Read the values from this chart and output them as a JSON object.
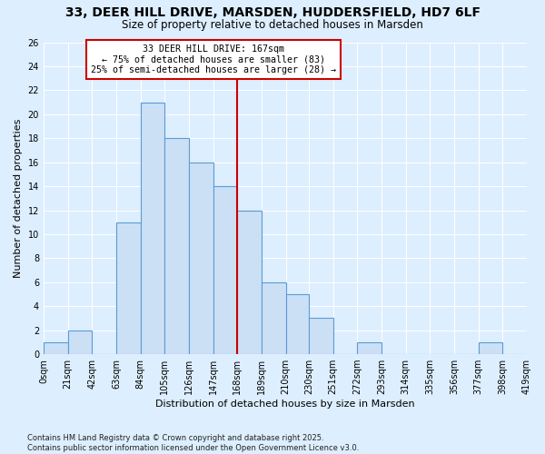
{
  "title": "33, DEER HILL DRIVE, MARSDEN, HUDDERSFIELD, HD7 6LF",
  "subtitle": "Size of property relative to detached houses in Marsden",
  "xlabel": "Distribution of detached houses by size in Marsden",
  "ylabel": "Number of detached properties",
  "bin_edges": [
    0,
    21,
    42,
    63,
    84,
    105,
    126,
    147,
    168,
    189,
    210,
    230,
    251,
    272,
    293,
    314,
    335,
    356,
    377,
    398,
    419
  ],
  "bin_labels": [
    "0sqm",
    "21sqm",
    "42sqm",
    "63sqm",
    "84sqm",
    "105sqm",
    "126sqm",
    "147sqm",
    "168sqm",
    "189sqm",
    "210sqm",
    "230sqm",
    "251sqm",
    "272sqm",
    "293sqm",
    "314sqm",
    "335sqm",
    "356sqm",
    "377sqm",
    "398sqm",
    "419sqm"
  ],
  "counts": [
    1,
    2,
    0,
    11,
    21,
    18,
    16,
    14,
    12,
    6,
    5,
    3,
    0,
    1,
    0,
    0,
    0,
    0,
    1,
    0
  ],
  "bar_color": "#cce0f5",
  "bar_edge_color": "#5b9bd5",
  "vline_x": 168,
  "vline_color": "#cc0000",
  "annotation_title": "33 DEER HILL DRIVE: 167sqm",
  "annotation_line1": "← 75% of detached houses are smaller (83)",
  "annotation_line2": "25% of semi-detached houses are larger (28) →",
  "annotation_box_color": "#ffffff",
  "annotation_box_edge": "#cc0000",
  "ylim": [
    0,
    26
  ],
  "yticks": [
    0,
    2,
    4,
    6,
    8,
    10,
    12,
    14,
    16,
    18,
    20,
    22,
    24,
    26
  ],
  "bg_color": "#ddeeff",
  "footer_line1": "Contains HM Land Registry data © Crown copyright and database right 2025.",
  "footer_line2": "Contains public sector information licensed under the Open Government Licence v3.0.",
  "title_fontsize": 10,
  "subtitle_fontsize": 8.5,
  "axis_label_fontsize": 8,
  "tick_fontsize": 7
}
